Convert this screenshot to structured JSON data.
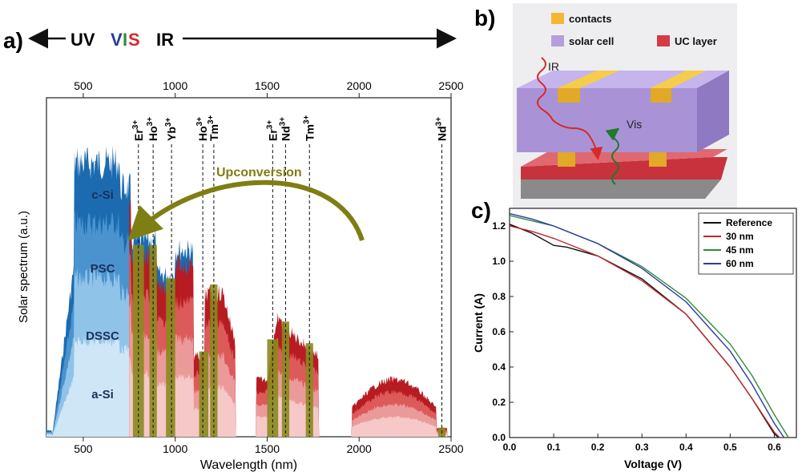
{
  "panel_labels": {
    "a": "a)",
    "b": "b)",
    "c": "c)"
  },
  "band_header": {
    "uv": "UV",
    "vis_v": "V",
    "vis_i": "I",
    "vis_s": "S",
    "ir": "IR"
  },
  "colors": {
    "v": "#2b3a9a",
    "i": "#2e8b3a",
    "s": "#d42a2a",
    "csi": "#1c6bb0",
    "psc": "#4a93cf",
    "dssc": "#8fc3e8",
    "asi": "#cfe6f6",
    "red1": "#b71c22",
    "red2": "#dd5a5a",
    "red3": "#eb9a9a",
    "red4": "#f6c8c8",
    "olive": "#8a8a1e",
    "arrow": "#7e7e12"
  },
  "chart_data": [
    {
      "type": "area",
      "title": "",
      "xlabel": "Wavelength (nm)",
      "ylabel": "Solar spectrum (a.u.)",
      "xlim": [
        300,
        2500
      ],
      "xticks_bottom": [
        "500",
        "1000",
        "1500",
        "2000",
        "2500"
      ],
      "xticks_top": [
        "500",
        "1000",
        "1500",
        "2000",
        "2500"
      ],
      "series_labels": [
        "c-Si",
        "PSC",
        "DSSC",
        "a-Si"
      ],
      "annotation": "Upconversion",
      "ion_lines": [
        {
          "label": "Er",
          "sup": "3+",
          "x": 800
        },
        {
          "label": "Ho",
          "sup": "3+",
          "x": 880
        },
        {
          "label": "Yb",
          "sup": "3+",
          "x": 980
        },
        {
          "label": "Ho",
          "sup": "3+",
          "x": 1150
        },
        {
          "label": "Tm",
          "sup": "3+",
          "x": 1210
        },
        {
          "label": "Er",
          "sup": "3+",
          "x": 1530
        },
        {
          "label": "Nd",
          "sup": "3+",
          "x": 1600
        },
        {
          "label": "Tm",
          "sup": "3+",
          "x": 1730
        },
        {
          "label": "Nd",
          "sup": "3+",
          "x": 2450
        }
      ]
    },
    {
      "type": "line",
      "title": "",
      "xlabel": "Voltage (V)",
      "ylabel": "Current (A)",
      "xlim": [
        0.0,
        0.65
      ],
      "ylim": [
        0.0,
        1.3
      ],
      "xticks": [
        "0.0",
        "0.1",
        "0.2",
        "0.3",
        "0.4",
        "0.5",
        "0.6"
      ],
      "yticks": [
        "0.0",
        "0.2",
        "0.4",
        "0.6",
        "0.8",
        "1.0",
        "1.2"
      ],
      "legend_position": "top-right",
      "series": [
        {
          "name": "Reference",
          "color": "#111111",
          "x": [
            0,
            0.05,
            0.1,
            0.13,
            0.2,
            0.3,
            0.4,
            0.5,
            0.55,
            0.6,
            0.61
          ],
          "y": [
            1.21,
            1.16,
            1.09,
            1.08,
            1.03,
            0.9,
            0.7,
            0.4,
            0.22,
            0.02,
            0
          ]
        },
        {
          "name": "30 nm",
          "color": "#c0282c",
          "x": [
            0,
            0.05,
            0.1,
            0.15,
            0.2,
            0.3,
            0.4,
            0.5,
            0.55,
            0.6,
            0.612
          ],
          "y": [
            1.2,
            1.17,
            1.13,
            1.08,
            1.03,
            0.89,
            0.7,
            0.4,
            0.22,
            0.03,
            0
          ]
        },
        {
          "name": "45 nm",
          "color": "#2e8b3a",
          "x": [
            0,
            0.05,
            0.1,
            0.15,
            0.2,
            0.3,
            0.4,
            0.5,
            0.55,
            0.6,
            0.632
          ],
          "y": [
            1.26,
            1.23,
            1.2,
            1.15,
            1.1,
            0.97,
            0.79,
            0.53,
            0.35,
            0.13,
            0
          ]
        },
        {
          "name": "60 nm",
          "color": "#2a3aa0",
          "x": [
            0,
            0.05,
            0.1,
            0.15,
            0.2,
            0.3,
            0.4,
            0.5,
            0.55,
            0.6,
            0.622
          ],
          "y": [
            1.27,
            1.24,
            1.2,
            1.15,
            1.1,
            0.96,
            0.77,
            0.49,
            0.3,
            0.08,
            0
          ]
        }
      ]
    }
  ],
  "schematic": {
    "legend": [
      {
        "label": "contacts",
        "color": "#f2b834"
      },
      {
        "label": "solar cell",
        "color": "#b49fdc"
      },
      {
        "label": "UC layer",
        "color": "#d43c45"
      }
    ],
    "ir_label": "IR",
    "vis_label": "Vis"
  }
}
